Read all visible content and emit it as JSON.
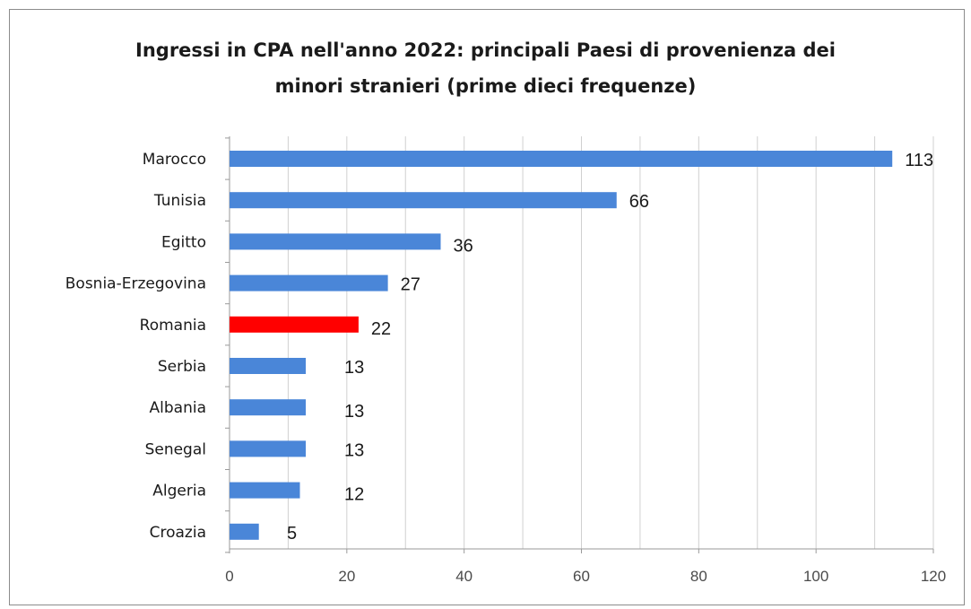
{
  "chart_data": {
    "type": "bar",
    "orientation": "horizontal",
    "title_line1": "Ingressi in CPA nell'anno 2022: principali Paesi di provenienza dei",
    "title_line2": "minori stranieri  (prime dieci frequenze)",
    "categories": [
      "Marocco",
      "Tunisia",
      "Egitto",
      "Bosnia-Erzegovina",
      "Romania",
      "Serbia",
      "Albania",
      "Senegal",
      "Algeria",
      "Croazia"
    ],
    "values": [
      113,
      66,
      36,
      27,
      22,
      13,
      13,
      13,
      12,
      5
    ],
    "highlight_category": "Romania",
    "bar_color": "#4a86d8",
    "highlight_color": "#ff0000",
    "xlim": [
      0,
      120
    ],
    "xticks": [
      0,
      20,
      40,
      60,
      80,
      100,
      120
    ],
    "grid": true,
    "xlabel": "",
    "ylabel": ""
  }
}
